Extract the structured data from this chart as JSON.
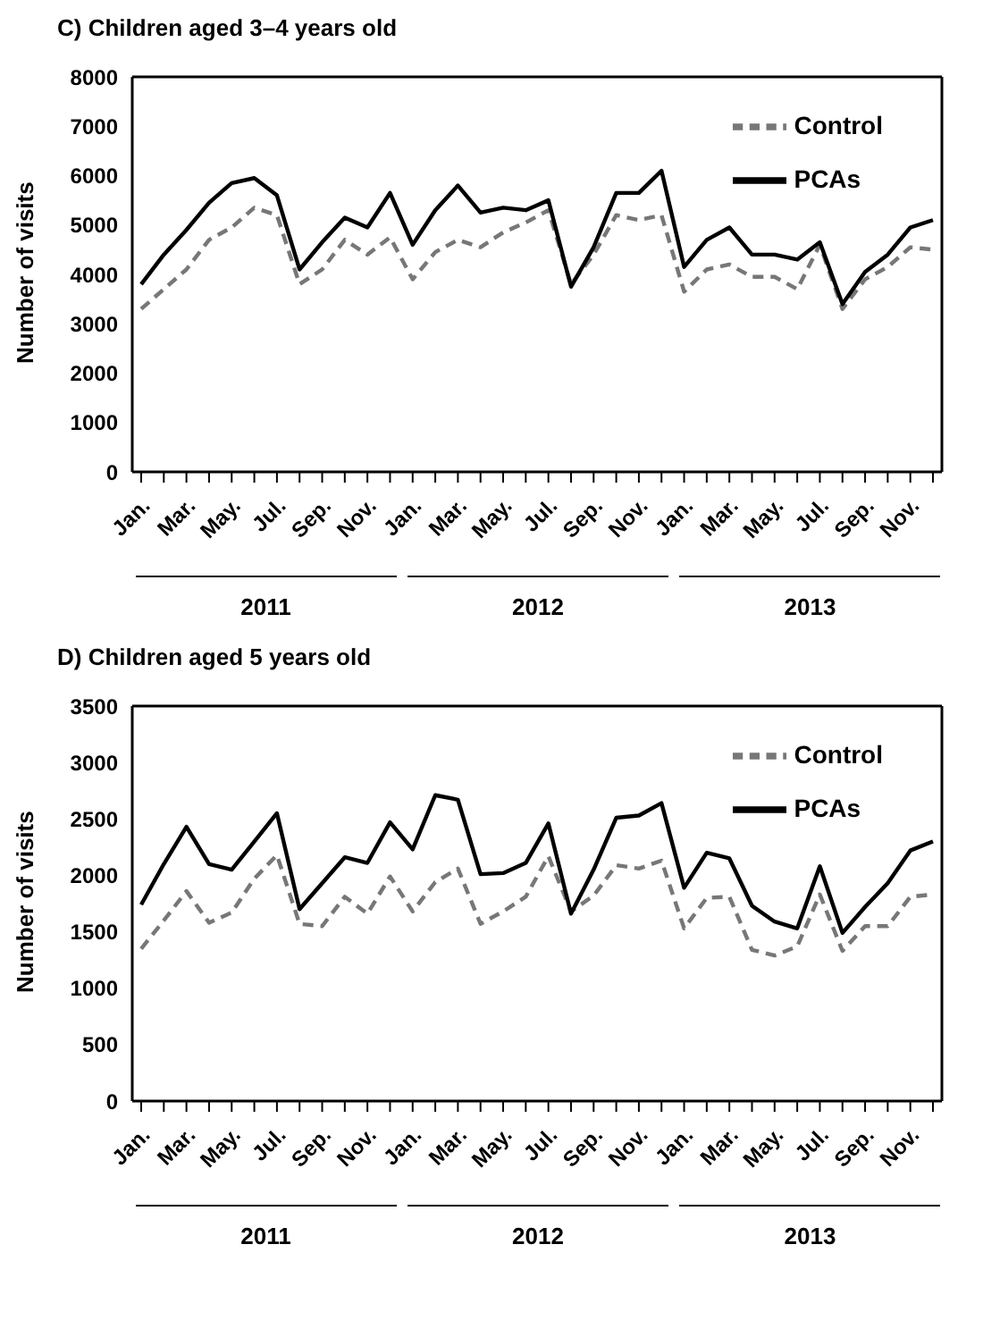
{
  "chart_data": [
    {
      "type": "line",
      "title": "C) Children aged 3–4 years old",
      "ylabel": "Number of visits",
      "categories": [
        "Jan.",
        null,
        "Mar.",
        null,
        "May.",
        null,
        "Jul.",
        null,
        "Sep.",
        null,
        "Nov.",
        null,
        "Jan.",
        null,
        "Mar.",
        null,
        "May.",
        null,
        "Jul.",
        null,
        "Sep.",
        null,
        "Nov.",
        null,
        "Jan.",
        null,
        "Mar.",
        null,
        "May.",
        null,
        "Jul.",
        null,
        "Sep.",
        null,
        "Nov.",
        null
      ],
      "series": [
        {
          "name": "Control",
          "color": "#777777",
          "line_style": "dashed",
          "values": [
            3300,
            3700,
            4100,
            4700,
            4950,
            5350,
            5200,
            3800,
            4100,
            4700,
            4400,
            4750,
            3900,
            4450,
            4700,
            4550,
            4850,
            5050,
            5300,
            3800,
            4400,
            5200,
            5100,
            5200,
            3650,
            4100,
            4200,
            3950,
            3950,
            3700,
            4600,
            3300,
            3900,
            4150,
            4550,
            4500
          ]
        },
        {
          "name": "PCAs",
          "color": "#000000",
          "line_style": "solid",
          "values": [
            3800,
            4400,
            4900,
            5450,
            5850,
            5950,
            5600,
            4100,
            4650,
            5150,
            4950,
            5650,
            4600,
            5300,
            5800,
            5250,
            5350,
            5300,
            5500,
            3750,
            4550,
            5650,
            5650,
            6100,
            4150,
            4700,
            4950,
            4400,
            4400,
            4300,
            4650,
            3400,
            4050,
            4400,
            4950,
            5100
          ]
        }
      ],
      "ylim": [
        0,
        8000
      ],
      "yticks": [
        0,
        1000,
        2000,
        3000,
        4000,
        5000,
        6000,
        7000,
        8000
      ],
      "grid": false,
      "legend": "top right",
      "marker": "none",
      "annotations": [
        "2011",
        "2012",
        "2013"
      ]
    },
    {
      "type": "line",
      "title": "D) Children aged 5 years old",
      "ylabel": "Number of visits",
      "categories": [
        "Jan.",
        null,
        "Mar.",
        null,
        "May.",
        null,
        "Jul.",
        null,
        "Sep.",
        null,
        "Nov.",
        null,
        "Jan.",
        null,
        "Mar.",
        null,
        "May.",
        null,
        "Jul.",
        null,
        "Sep.",
        null,
        "Nov.",
        null,
        "Jan.",
        null,
        "Mar.",
        null,
        "May.",
        null,
        "Jul.",
        null,
        "Sep.",
        null,
        "Nov.",
        null
      ],
      "series": [
        {
          "name": "Control",
          "color": "#777777",
          "line_style": "dashed",
          "values": [
            1350,
            1600,
            1860,
            1580,
            1670,
            1970,
            2180,
            1570,
            1550,
            1810,
            1660,
            1990,
            1680,
            1940,
            2060,
            1570,
            1680,
            1810,
            2170,
            1680,
            1820,
            2090,
            2060,
            2130,
            1530,
            1800,
            1810,
            1340,
            1290,
            1370,
            1830,
            1330,
            1550,
            1550,
            1810,
            1830
          ]
        },
        {
          "name": "PCAs",
          "color": "#000000",
          "line_style": "solid",
          "values": [
            1740,
            2100,
            2430,
            2100,
            2050,
            2300,
            2550,
            1700,
            1930,
            2160,
            2110,
            2470,
            2230,
            2710,
            2670,
            2010,
            2020,
            2110,
            2460,
            1660,
            2050,
            2510,
            2530,
            2640,
            1890,
            2200,
            2150,
            1730,
            1590,
            1530,
            2080,
            1490,
            1720,
            1930,
            2220,
            2300
          ]
        }
      ],
      "ylim": [
        0,
        3500
      ],
      "yticks": [
        0,
        500,
        1000,
        1500,
        2000,
        2500,
        3000,
        3500
      ],
      "grid": false,
      "legend": "top right",
      "marker": "none",
      "annotations": [
        "2011",
        "2012",
        "2013"
      ]
    }
  ]
}
